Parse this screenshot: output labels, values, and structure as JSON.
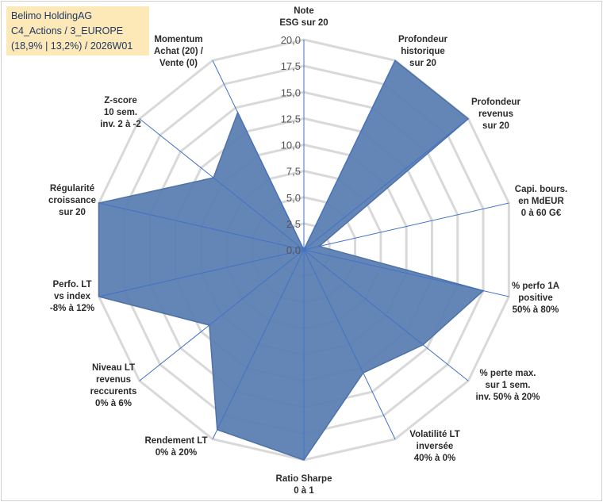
{
  "title_lines": [
    "Belimo HoldingAG",
    "C4_Actions / 3_EUROPE",
    "(18,9% | 13,2%) / 2026W01"
  ],
  "chart_data": {
    "type": "radar",
    "rmax": 20,
    "ticks": [
      "0,0",
      "2,5",
      "5,0",
      "7,5",
      "10,0",
      "12,5",
      "15,0",
      "17,5",
      "20,0"
    ],
    "tick_values": [
      0,
      2.5,
      5,
      7.5,
      10,
      12.5,
      15,
      17.5,
      20
    ],
    "axes": [
      {
        "label": [
          "Note",
          "ESG sur 20"
        ],
        "value": 0
      },
      {
        "label": [
          "Profondeur",
          "historique",
          "sur 20"
        ],
        "value": 20
      },
      {
        "label": [
          "Profondeur",
          "revenus",
          "sur 20"
        ],
        "value": 20
      },
      {
        "label": [
          "Capi. bours.",
          "en MdEUR",
          "0 à 60 G€"
        ],
        "value": 1.5
      },
      {
        "label": [
          "% perfo 1A",
          "positive",
          "50% à 80%"
        ],
        "value": 17.5
      },
      {
        "label": [
          "% perte max.",
          "sur 1 sem.",
          "inv. 50% à 20%"
        ],
        "value": 14.5
      },
      {
        "label": [
          "Volatilité LT",
          "inversée",
          "40% à 0%"
        ],
        "value": 13
      },
      {
        "label": [
          "Ratio Sharpe",
          "0 à 1"
        ],
        "value": 20
      },
      {
        "label": [
          "Rendement LT",
          "0% à 20%"
        ],
        "value": 19
      },
      {
        "label": [
          "Niveau LT",
          "revenus",
          "reccurents",
          "0% à 6%"
        ],
        "value": 11.5
      },
      {
        "label": [
          "Perfo. LT",
          "vs index",
          "-8% à 12%"
        ],
        "value": 20
      },
      {
        "label": [
          "Régularité",
          "croissance",
          "sur 20"
        ],
        "value": 20
      },
      {
        "label": [
          "Z-score",
          "10 sem.",
          "inv. 2 à -2"
        ],
        "value": 11
      },
      {
        "label": [
          "Momentum",
          "Achat (20) /",
          "Vente (0)"
        ],
        "value": 14.5
      }
    ],
    "colors": {
      "fill": "#5b7fb3",
      "stroke": "#4f72a6",
      "spokes": "#4472c4",
      "grid": "#d9d9d9"
    }
  }
}
